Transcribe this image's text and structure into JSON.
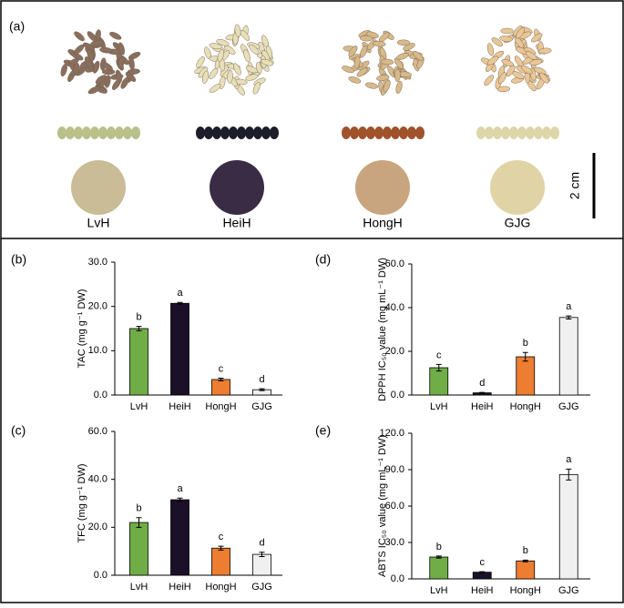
{
  "panel_a": {
    "label": "(a)",
    "samples": [
      "LvH",
      "HeiH",
      "HongH",
      "GJG"
    ],
    "scale": "2 cm"
  },
  "chart_data": [
    {
      "type": "bar",
      "label": "(b)",
      "y_label": "TAC (mg g⁻¹ DW)",
      "categories": [
        "LvH",
        "HeiH",
        "HongH",
        "GJG"
      ],
      "values": [
        15.0,
        20.7,
        3.5,
        1.2
      ],
      "errors": [
        0.5,
        0.2,
        0.3,
        0.2
      ],
      "annotations": [
        "b",
        "a",
        "c",
        "d"
      ],
      "colors": [
        "#70ad47",
        "#1c1029",
        "#ed7d31",
        "#f0f0f0"
      ],
      "ylim": [
        0,
        30
      ],
      "yticks": [
        {
          "value": 0,
          "label": "0.0"
        },
        {
          "value": 10,
          "label": "10.0"
        },
        {
          "value": 20,
          "label": "20.0"
        },
        {
          "value": 30,
          "label": "30.0"
        }
      ]
    },
    {
      "type": "bar",
      "label": "(d)",
      "y_label": "DPPH IC₅₀ value (mg mL⁻¹ DW)",
      "categories": [
        "LvH",
        "HeiH",
        "HongH",
        "GJG"
      ],
      "values": [
        12.5,
        1.0,
        17.5,
        35.5
      ],
      "errors": [
        1.5,
        0.2,
        2.0,
        0.7
      ],
      "annotations": [
        "c",
        "d",
        "b",
        "a"
      ],
      "colors": [
        "#70ad47",
        "#1c1029",
        "#ed7d31",
        "#f0f0f0"
      ],
      "ylim": [
        0,
        60
      ],
      "yticks": [
        {
          "value": 0,
          "label": "0.0"
        },
        {
          "value": 20,
          "label": "20.0"
        },
        {
          "value": 40,
          "label": "40.0"
        },
        {
          "value": 60,
          "label": "60.0"
        }
      ]
    },
    {
      "type": "bar",
      "label": "(c)",
      "y_label": "TFC (mg g⁻¹ DW)",
      "categories": [
        "LvH",
        "HeiH",
        "HongH",
        "GJG"
      ],
      "values": [
        22.0,
        31.5,
        11.3,
        8.7
      ],
      "errors": [
        2.0,
        0.7,
        0.8,
        0.9
      ],
      "annotations": [
        "b",
        "a",
        "c",
        "d"
      ],
      "colors": [
        "#70ad47",
        "#1c1029",
        "#ed7d31",
        "#f0f0f0"
      ],
      "ylim": [
        0,
        60
      ],
      "yticks": [
        {
          "value": 0,
          "label": "0.0"
        },
        {
          "value": 20,
          "label": "20.0"
        },
        {
          "value": 40,
          "label": "40.0"
        },
        {
          "value": 60,
          "label": "60.0"
        }
      ]
    },
    {
      "type": "bar",
      "label": "(e)",
      "y_label": "ABTS IC₅₀ value (mg mL⁻¹ DW)",
      "categories": [
        "LvH",
        "HeiH",
        "HongH",
        "GJG"
      ],
      "values": [
        18.0,
        5.5,
        14.8,
        86.0
      ],
      "errors": [
        0.8,
        0.4,
        0.7,
        4.5
      ],
      "annotations": [
        "b",
        "c",
        "b",
        "a"
      ],
      "colors": [
        "#70ad47",
        "#1c1029",
        "#ed7d31",
        "#f0f0f0"
      ],
      "ylim": [
        0,
        120
      ],
      "yticks": [
        {
          "value": 0,
          "label": "0.0"
        },
        {
          "value": 30,
          "label": "30.0"
        },
        {
          "value": 60,
          "label": "60.0"
        },
        {
          "value": 90,
          "label": "90.0"
        },
        {
          "value": 120,
          "label": "120.0"
        }
      ]
    }
  ]
}
